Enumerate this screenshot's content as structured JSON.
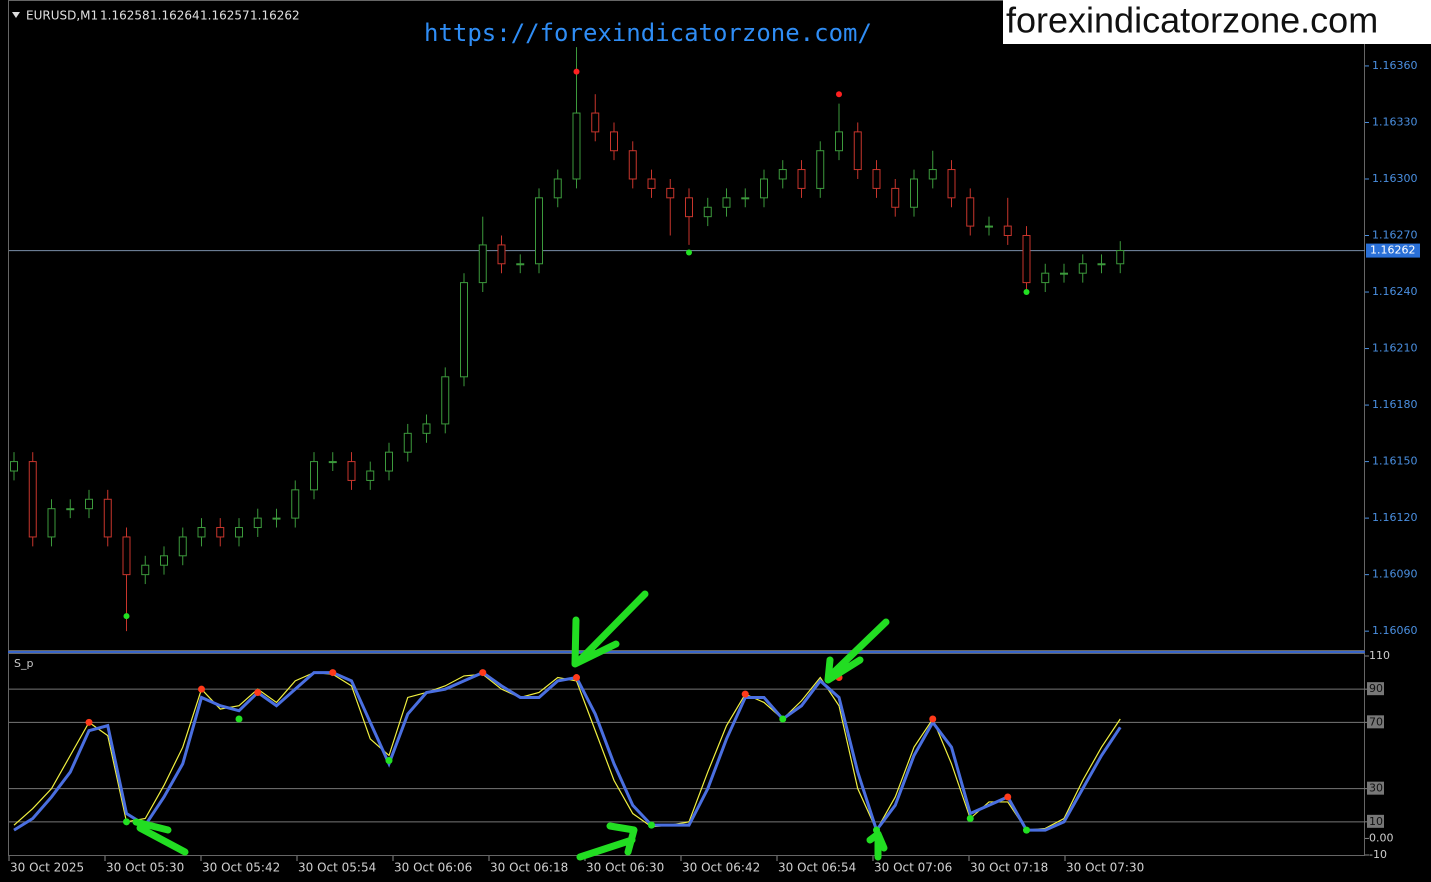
{
  "header": {
    "symbol": "EURUSD,M1",
    "quote": [
      1.16258,
      1.16264,
      1.16257,
      1.16262
    ]
  },
  "url_watermark": "https://forexindicatorzone.com/",
  "site_watermark": "forexindicatorzone.com",
  "x_axis_labels": [
    "30 Oct 2025",
    "30 Oct 05:30",
    "30 Oct 05:42",
    "30 Oct 05:54",
    "30 Oct 06:06",
    "30 Oct 06:18",
    "30 Oct 06:30",
    "30 Oct 06:42",
    "30 Oct 06:54",
    "30 Oct 07:06",
    "30 Oct 07:18",
    "30 Oct 07:30"
  ],
  "chart_data": [
    {
      "type": "candlestick",
      "current_price": {
        "value": 1.16262,
        "label": "1.16262"
      },
      "ylim": [
        1.1605,
        1.16395
      ],
      "yticks": [
        {
          "value": 1.1636,
          "label": "1.16360"
        },
        {
          "value": 1.1633,
          "label": "1.16330"
        },
        {
          "value": 1.163,
          "label": "1.16300"
        },
        {
          "value": 1.1627,
          "label": "1.16270"
        },
        {
          "value": 1.1624,
          "label": "1.16240"
        },
        {
          "value": 1.1621,
          "label": "1.16210"
        },
        {
          "value": 1.1618,
          "label": "1.16180"
        },
        {
          "value": 1.1615,
          "label": "1.16150"
        },
        {
          "value": 1.1612,
          "label": "1.16120"
        },
        {
          "value": 1.1609,
          "label": "1.16090"
        },
        {
          "value": 1.1606,
          "label": "1.16060"
        }
      ],
      "up_color": "#3c9a3c",
      "down_color": "#c8352c",
      "open": [
        1.16145,
        1.1615,
        1.1611,
        1.16125,
        1.16125,
        1.1613,
        1.1611,
        1.1609,
        1.16095,
        1.161,
        1.1611,
        1.16115,
        1.1611,
        1.16115,
        1.1612,
        1.1612,
        1.16135,
        1.1615,
        1.1615,
        1.1614,
        1.16145,
        1.16155,
        1.16165,
        1.1617,
        1.16195,
        1.16245,
        1.16265,
        1.16255,
        1.16255,
        1.1629,
        1.163,
        1.16335,
        1.16325,
        1.16315,
        1.163,
        1.16295,
        1.1629,
        1.1628,
        1.16285,
        1.1629,
        1.1629,
        1.163,
        1.16305,
        1.16295,
        1.16315,
        1.16325,
        1.16305,
        1.16295,
        1.16285,
        1.163,
        1.16305,
        1.1629,
        1.16275,
        1.16275,
        1.1627,
        1.16245,
        1.1625,
        1.1625,
        1.16255,
        1.16255
      ],
      "high": [
        1.16155,
        1.16155,
        1.1613,
        1.1613,
        1.16135,
        1.16135,
        1.16115,
        1.161,
        1.16105,
        1.16115,
        1.1612,
        1.1612,
        1.1612,
        1.16125,
        1.16125,
        1.1614,
        1.16155,
        1.16155,
        1.16155,
        1.1615,
        1.1616,
        1.1617,
        1.16175,
        1.162,
        1.1625,
        1.1628,
        1.1627,
        1.1626,
        1.16295,
        1.16305,
        1.1637,
        1.16345,
        1.1633,
        1.1632,
        1.16305,
        1.163,
        1.16295,
        1.1629,
        1.16295,
        1.16295,
        1.16305,
        1.1631,
        1.1631,
        1.1632,
        1.1634,
        1.1633,
        1.1631,
        1.163,
        1.16305,
        1.16315,
        1.1631,
        1.16295,
        1.1628,
        1.1629,
        1.16275,
        1.16255,
        1.16255,
        1.1626,
        1.1626,
        1.16267
      ],
      "low": [
        1.1614,
        1.16105,
        1.16105,
        1.1612,
        1.1612,
        1.16105,
        1.1606,
        1.16085,
        1.1609,
        1.16095,
        1.16105,
        1.16105,
        1.16105,
        1.1611,
        1.16115,
        1.16115,
        1.1613,
        1.16145,
        1.16135,
        1.16135,
        1.1614,
        1.1615,
        1.1616,
        1.16165,
        1.1619,
        1.1624,
        1.1625,
        1.1625,
        1.1625,
        1.16285,
        1.16295,
        1.1632,
        1.1631,
        1.16295,
        1.1629,
        1.1627,
        1.16265,
        1.16275,
        1.1628,
        1.16285,
        1.16285,
        1.16295,
        1.1629,
        1.1629,
        1.1631,
        1.163,
        1.1629,
        1.1628,
        1.1628,
        1.16295,
        1.16285,
        1.1627,
        1.1627,
        1.16265,
        1.1624,
        1.1624,
        1.16245,
        1.16245,
        1.1625,
        1.1625
      ],
      "close": [
        1.1615,
        1.1611,
        1.16125,
        1.16125,
        1.1613,
        1.1611,
        1.1609,
        1.16095,
        1.161,
        1.1611,
        1.16115,
        1.1611,
        1.16115,
        1.1612,
        1.1612,
        1.16135,
        1.1615,
        1.1615,
        1.1614,
        1.16145,
        1.16155,
        1.16165,
        1.1617,
        1.16195,
        1.16245,
        1.16265,
        1.16255,
        1.16255,
        1.1629,
        1.163,
        1.16335,
        1.16325,
        1.16315,
        1.163,
        1.16295,
        1.1629,
        1.1628,
        1.16285,
        1.1629,
        1.1629,
        1.163,
        1.16305,
        1.16295,
        1.16315,
        1.16325,
        1.16305,
        1.16295,
        1.16285,
        1.163,
        1.16305,
        1.1629,
        1.16275,
        1.16275,
        1.1627,
        1.16245,
        1.1625,
        1.1625,
        1.16255,
        1.16255,
        1.16262
      ],
      "fractal_high": {
        "color": "#ff2020",
        "values": [
          null,
          null,
          null,
          null,
          null,
          null,
          null,
          null,
          null,
          null,
          null,
          null,
          null,
          null,
          null,
          null,
          null,
          null,
          null,
          null,
          null,
          null,
          null,
          null,
          null,
          null,
          null,
          null,
          null,
          null,
          1.16357,
          null,
          null,
          null,
          null,
          null,
          null,
          null,
          null,
          null,
          null,
          null,
          null,
          null,
          1.16345,
          null,
          null,
          null,
          null,
          null,
          null,
          null,
          null,
          null,
          null,
          null,
          null,
          null,
          null,
          null
        ]
      },
      "fractal_low": {
        "color": "#22e022",
        "values": [
          null,
          null,
          null,
          null,
          null,
          null,
          1.16068,
          null,
          null,
          null,
          null,
          null,
          null,
          null,
          null,
          null,
          null,
          null,
          null,
          null,
          null,
          null,
          null,
          null,
          null,
          null,
          null,
          null,
          null,
          null,
          null,
          null,
          null,
          null,
          null,
          null,
          1.16261,
          null,
          null,
          null,
          null,
          null,
          null,
          null,
          null,
          null,
          null,
          null,
          null,
          null,
          null,
          null,
          null,
          null,
          1.1624,
          null,
          null,
          null,
          null,
          null
        ]
      }
    },
    {
      "type": "line",
      "title": "S_p",
      "ylim": [
        -10,
        110
      ],
      "yticks": [
        110,
        90,
        70,
        30,
        10,
        {
          "value": 0,
          "label": "0.00"
        },
        -10
      ],
      "levels": [
        90,
        70,
        30,
        10
      ],
      "series": [
        {
          "color": "#f0f040",
          "values": [
            8,
            18,
            30,
            50,
            70,
            62,
            10,
            12,
            32,
            55,
            90,
            78,
            80,
            90,
            82,
            95,
            100,
            99,
            92,
            60,
            50,
            85,
            88,
            92,
            98,
            99,
            90,
            85,
            88,
            97,
            95,
            65,
            35,
            15,
            7,
            8,
            10,
            40,
            68,
            87,
            82,
            72,
            83,
            97,
            80,
            30,
            5,
            25,
            55,
            72,
            45,
            12,
            22,
            22,
            5,
            6,
            12,
            35,
            55,
            72
          ]
        },
        {
          "color": "#4a6fe0",
          "values": [
            5,
            12,
            25,
            40,
            65,
            68,
            15,
            8,
            25,
            45,
            85,
            80,
            77,
            88,
            80,
            90,
            100,
            100,
            95,
            70,
            45,
            75,
            88,
            90,
            95,
            100,
            92,
            85,
            85,
            95,
            97,
            75,
            45,
            20,
            8,
            8,
            8,
            30,
            60,
            85,
            85,
            72,
            80,
            95,
            85,
            40,
            5,
            20,
            50,
            70,
            55,
            15,
            20,
            25,
            5,
            5,
            10,
            30,
            50,
            67
          ]
        }
      ],
      "peak_marks": {
        "color": "#ff3a1a",
        "values": [
          null,
          null,
          null,
          null,
          70,
          null,
          null,
          null,
          null,
          null,
          90,
          null,
          null,
          88,
          null,
          null,
          null,
          100,
          null,
          null,
          null,
          null,
          null,
          null,
          null,
          100,
          null,
          null,
          null,
          null,
          97,
          null,
          null,
          null,
          null,
          null,
          null,
          null,
          null,
          87,
          null,
          null,
          null,
          null,
          97,
          null,
          null,
          null,
          null,
          72,
          null,
          null,
          null,
          25,
          null,
          null,
          null,
          null,
          null,
          null
        ]
      },
      "trough_marks": {
        "color": "#22e022",
        "values": [
          null,
          null,
          null,
          null,
          null,
          null,
          10,
          null,
          null,
          null,
          null,
          null,
          72,
          null,
          null,
          null,
          null,
          null,
          null,
          null,
          47,
          null,
          null,
          null,
          null,
          null,
          null,
          null,
          null,
          null,
          null,
          null,
          null,
          null,
          8,
          null,
          null,
          null,
          null,
          null,
          null,
          72,
          null,
          null,
          null,
          null,
          5,
          null,
          null,
          null,
          null,
          12,
          null,
          null,
          5,
          null,
          null,
          null,
          null,
          null
        ]
      }
    }
  ]
}
